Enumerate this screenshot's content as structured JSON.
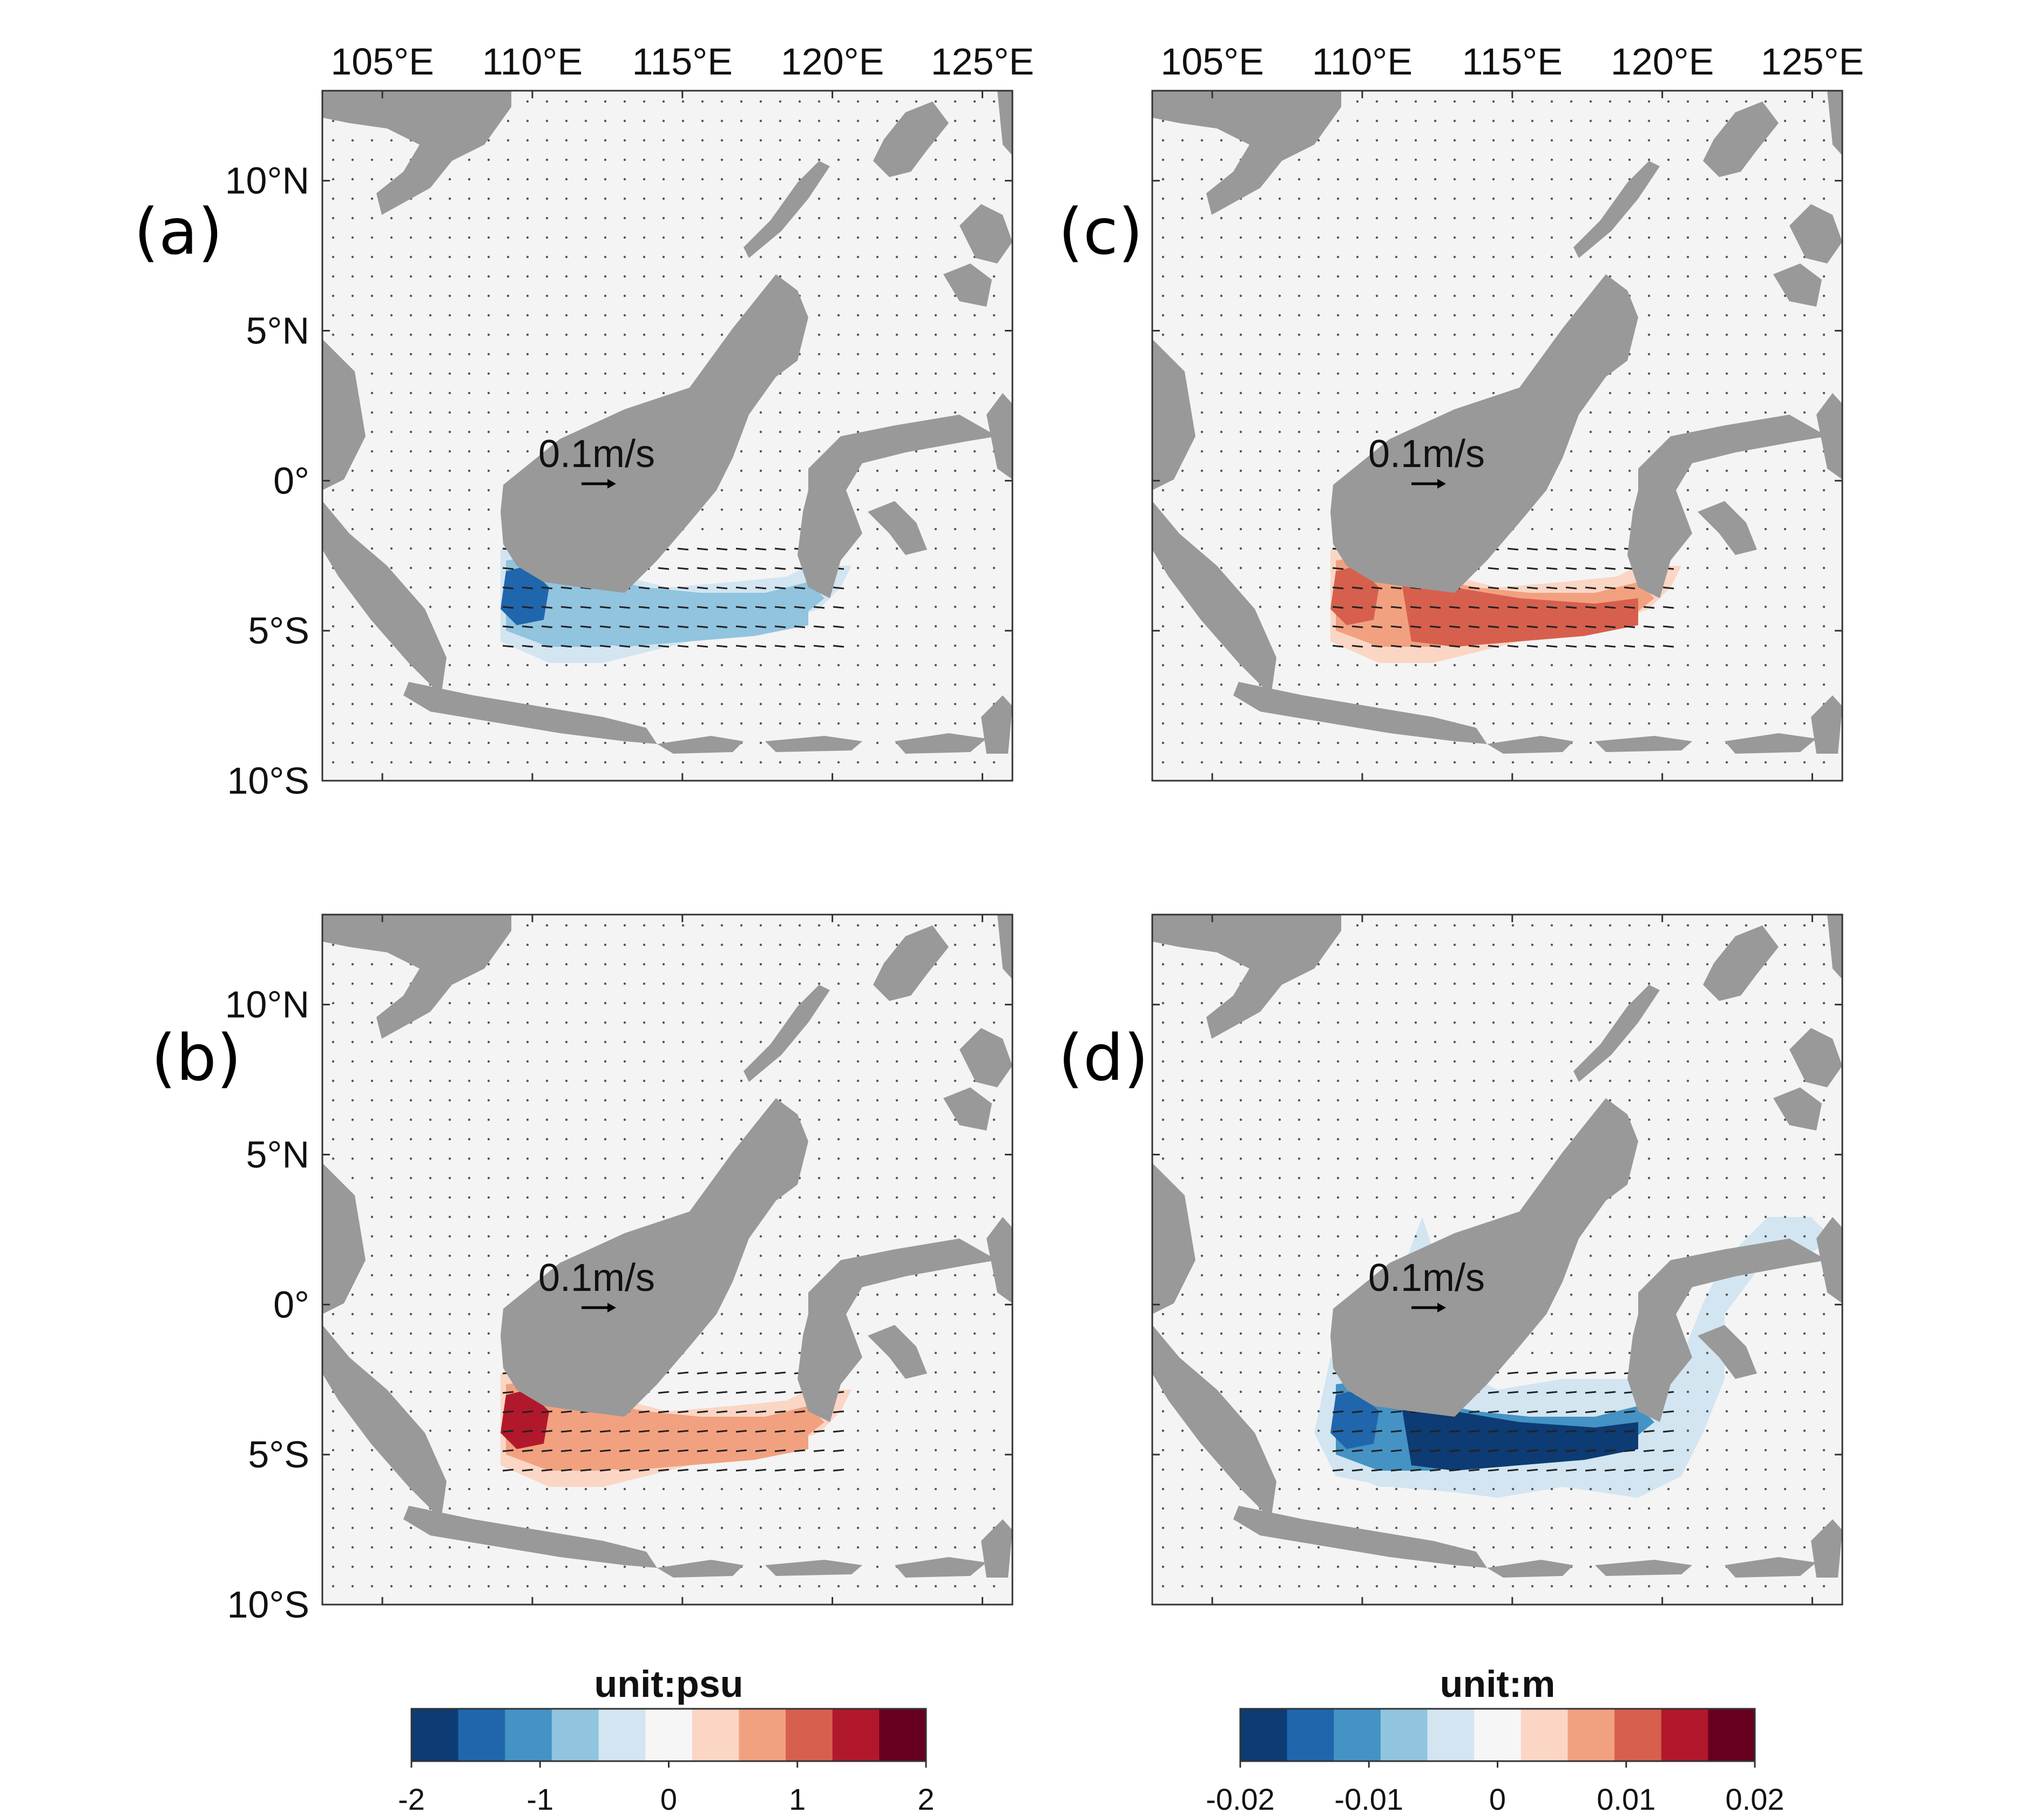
{
  "figure": {
    "lon_ticks": [
      "105°E",
      "110°E",
      "115°E",
      "120°E",
      "125°E"
    ],
    "lat_ticks": [
      "10°N",
      "5°N",
      "0°",
      "5°S",
      "10°S"
    ],
    "lon_values": [
      105,
      110,
      115,
      120,
      125
    ],
    "lat_values": [
      10,
      5,
      0,
      -5,
      -10
    ],
    "lon_range": [
      103,
      126
    ],
    "lat_range": [
      -10,
      13
    ],
    "land_color": "#999999",
    "ocean_color": "#f4f4f4",
    "scale_arrow_label": "0.1m/s",
    "panels": [
      {
        "label": "(a)",
        "field": "psu",
        "sign": "negative"
      },
      {
        "label": "(b)",
        "field": "psu",
        "sign": "positive"
      },
      {
        "label": "(c)",
        "field": "m",
        "sign": "positive"
      },
      {
        "label": "(d)",
        "field": "m",
        "sign": "negative"
      }
    ],
    "colorbars": [
      {
        "title": "unit:psu",
        "ticks": [
          "-2",
          "-1",
          "0",
          "1",
          "2"
        ]
      },
      {
        "title": "unit:m",
        "ticks": [
          "-0.02",
          "-0.01",
          "0",
          "0.01",
          "0.02"
        ]
      }
    ],
    "palette": [
      "#0d3b73",
      "#2066ad",
      "#4493c4",
      "#91c4df",
      "#d2e5f1",
      "#f6f6f6",
      "#fbd6c4",
      "#f2a180",
      "#d6604d",
      "#b2182b",
      "#67001f"
    ]
  }
}
